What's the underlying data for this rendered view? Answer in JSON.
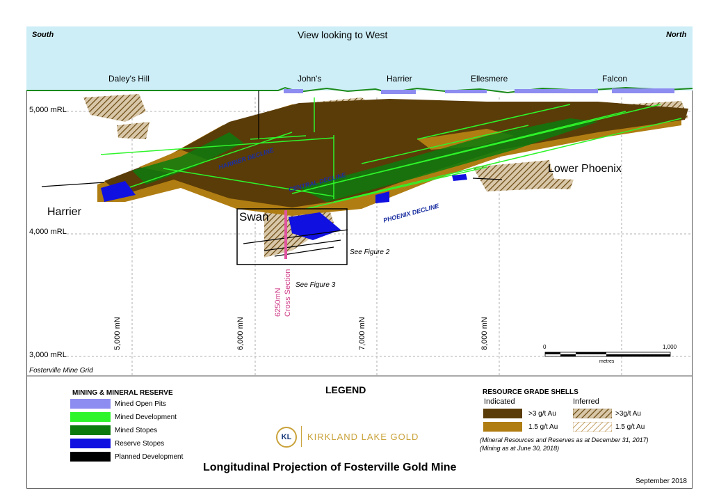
{
  "header": {
    "south": "South",
    "north": "North",
    "view": "View looking to West"
  },
  "deposits": {
    "daleys_hill": "Daley's Hill",
    "johns": "John's",
    "harrier_top": "Harrier",
    "ellesmere": "Ellesmere",
    "falcon": "Falcon"
  },
  "map_labels": {
    "harrier": "Harrier",
    "swan": "Swan",
    "lower_phoenix": "Lower Phoenix",
    "harrier_decline": "HARRIER DECLINE",
    "central_decline": "CENTRAL DECLINE",
    "phoenix_decline": "PHOENIX DECLINE",
    "see_fig2": "See Figure 2",
    "see_fig3": "See Figure 3",
    "section_line1": "6250mN",
    "section_line2": "Cross Section"
  },
  "elevations": [
    "5,000 mRL",
    "4,000 mRL",
    "3,000 mRL"
  ],
  "northings": [
    "5,000 mN",
    "6,000 mN",
    "7,000 mN",
    "8,000 mN"
  ],
  "grid_name": "Fosterville Mine Grid",
  "scale": {
    "start": "0",
    "end": "1,000",
    "unit": "metres"
  },
  "legend": {
    "title": "LEGEND",
    "mining_title": "MINING & MINERAL RESERVE",
    "mining_items": [
      {
        "label": "Mined Open Pits",
        "color": "#8d8cf0"
      },
      {
        "label": "Mined Development",
        "color": "#2ef52a"
      },
      {
        "label": "Mined Stopes",
        "color": "#0d7a0d"
      },
      {
        "label": "Reserve Stopes",
        "color": "#1010e0"
      },
      {
        "label": "Planned Development",
        "color": "#000000"
      }
    ],
    "resource_title": "RESOURCE GRADE SHELLS",
    "indicated": "Indicated",
    "inferred": "Inferred",
    "ind_items": [
      {
        "label": ">3 g/t Au",
        "color": "#5a3c08"
      },
      {
        "label": "1.5 g/t Au",
        "color": "#b07d12"
      }
    ],
    "inf_items": [
      {
        "label": ">3g/t Au"
      },
      {
        "label": "1.5 g/t Au"
      }
    ],
    "note1": "(Mineral Resources and Reserves as at December 31, 2017)",
    "note2": "(Mining as at June 30, 2018)"
  },
  "logo": {
    "mark": "KL",
    "text": "KIRKLAND LAKE GOLD"
  },
  "title": "Longitudinal Projection of Fosterville Gold Mine",
  "date": "September  2018"
}
